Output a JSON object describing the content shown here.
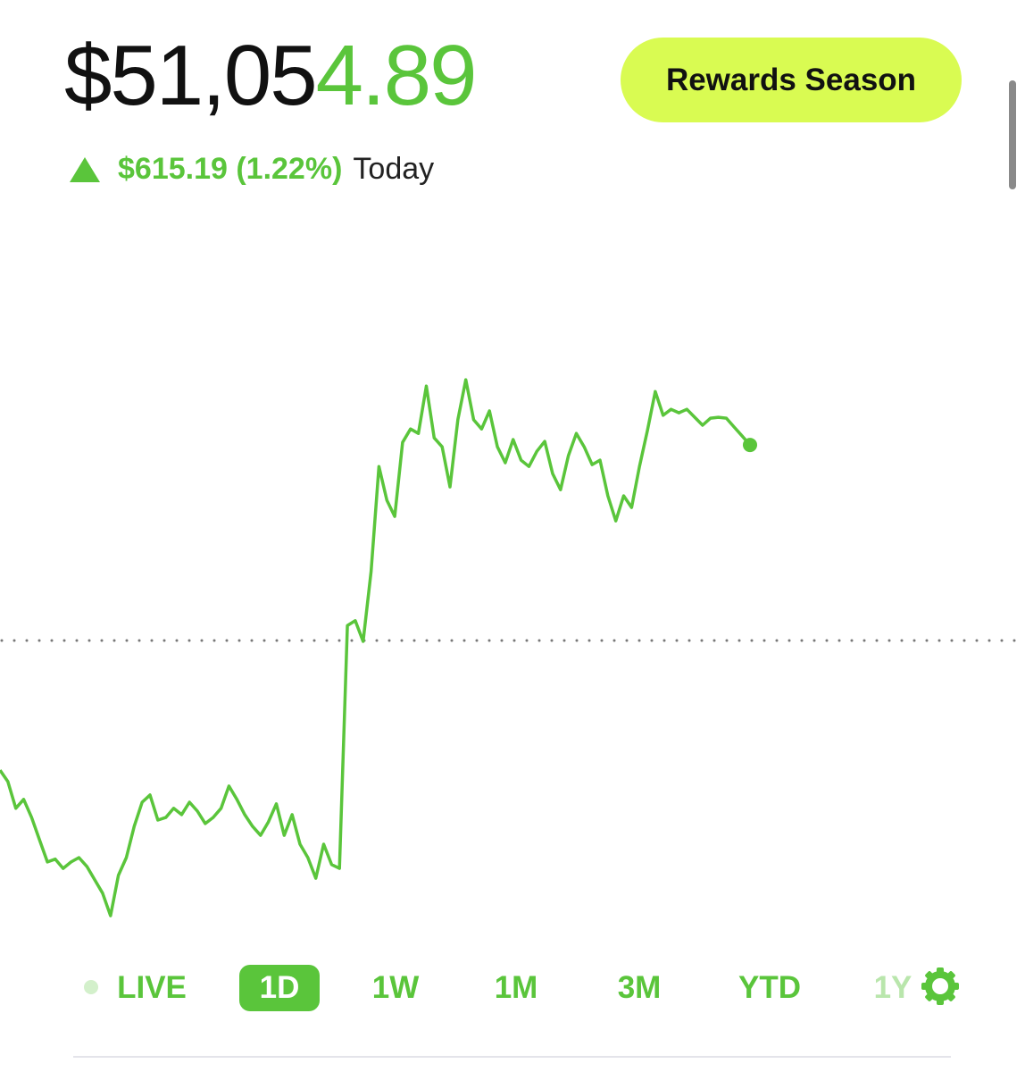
{
  "header": {
    "balance": [
      "$51,05",
      "4.89"
    ],
    "change": "$615.19 (1.22%)",
    "period": "Today",
    "button": "Rewards Season"
  },
  "chart": {
    "type": "line",
    "color": "#5ac53b",
    "ylim": [
      49504,
      51752
    ],
    "reference": 50439.7,
    "values": [
      50032,
      49996,
      49912,
      49940,
      49883,
      49813,
      49743,
      49752,
      49723,
      49743,
      49757,
      49729,
      49687,
      49645,
      49574,
      49701,
      49757,
      49855,
      49931,
      49954,
      49875,
      49883,
      49912,
      49892,
      49931,
      49903,
      49864,
      49883,
      49912,
      49982,
      49940,
      49892,
      49855,
      49827,
      49869,
      49926,
      49827,
      49892,
      49799,
      49757,
      49692,
      49799,
      49735,
      49723,
      50487,
      50502,
      50437,
      50656,
      50987,
      50881,
      50830,
      51063,
      51105,
      51091,
      51240,
      51077,
      51049,
      50923,
      51134,
      51260,
      51134,
      51105,
      51162,
      51049,
      50999,
      51072,
      51007,
      50987,
      51035,
      51066,
      50965,
      50914,
      51021,
      51091,
      51049,
      50993,
      51007,
      50895,
      50816,
      50895,
      50858,
      50987,
      51100,
      51223,
      51148,
      51167,
      51156,
      51167,
      51142,
      51117,
      51139,
      51142,
      51139,
      51111,
      51083,
      51054.89
    ]
  },
  "tabs": [
    "LIVE",
    "1D",
    "1W",
    "1M",
    "3M",
    "YTD",
    "1Y"
  ]
}
